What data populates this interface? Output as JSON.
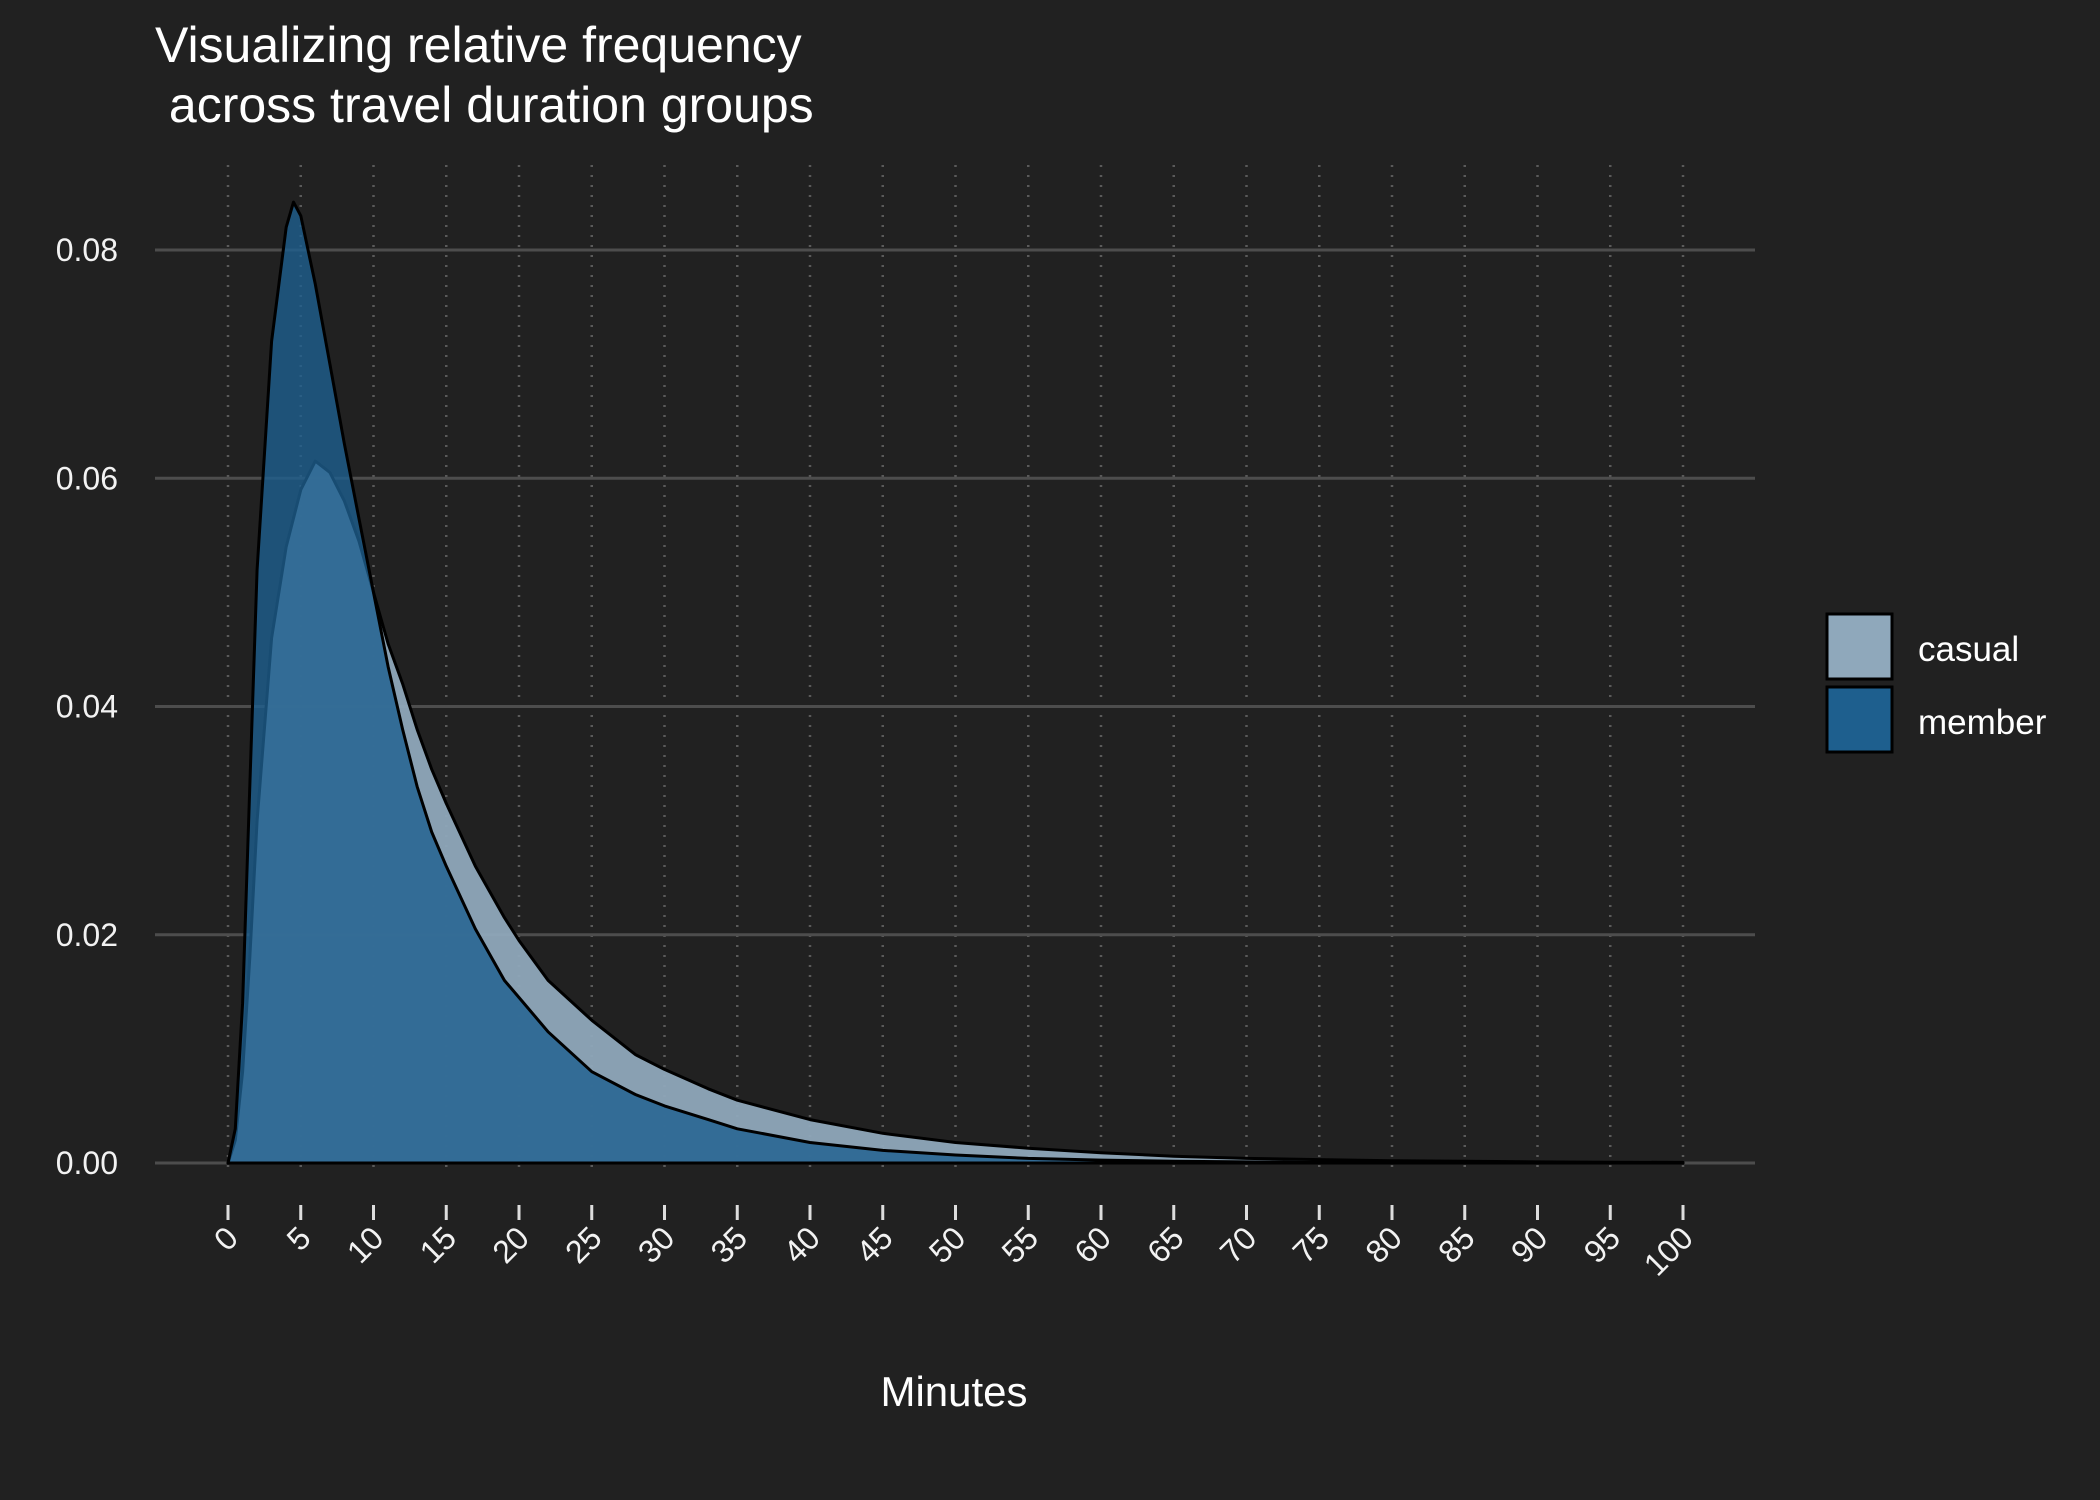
{
  "chart_data": {
    "type": "area",
    "title_lines": [
      "Visualizing relative frequency",
      " across travel duration groups"
    ],
    "xlabel": "Minutes",
    "ylabel": "",
    "xlim": [
      0,
      100
    ],
    "ylim": [
      0,
      0.088
    ],
    "x_ticks": [
      0,
      5,
      10,
      15,
      20,
      25,
      30,
      35,
      40,
      45,
      50,
      55,
      60,
      65,
      70,
      75,
      80,
      85,
      90,
      95,
      100
    ],
    "y_ticks": [
      0,
      0.02,
      0.04,
      0.06,
      0.08
    ],
    "y_tick_labels": [
      "0.00",
      "0.02",
      "0.04",
      "0.06",
      "0.08"
    ],
    "grid": {
      "major_y": true,
      "minor_x_dotted": true
    },
    "legend": {
      "position": "right",
      "title": ""
    },
    "series": [
      {
        "name": "casual",
        "color": "#8fa8bb",
        "x": [
          0,
          0.5,
          1,
          1.5,
          2,
          3,
          4,
          5,
          6,
          7,
          8,
          9,
          10,
          11,
          12,
          13,
          14,
          15,
          17,
          19,
          20,
          22,
          25,
          28,
          30,
          33,
          35,
          40,
          45,
          50,
          55,
          60,
          65,
          70,
          75,
          80,
          85,
          90,
          95,
          100
        ],
        "values": [
          0,
          0.002,
          0.008,
          0.018,
          0.03,
          0.046,
          0.054,
          0.059,
          0.0615,
          0.0605,
          0.058,
          0.0545,
          0.05,
          0.0455,
          0.042,
          0.038,
          0.0345,
          0.0315,
          0.026,
          0.0215,
          0.0195,
          0.016,
          0.0125,
          0.0095,
          0.0082,
          0.0065,
          0.0055,
          0.0038,
          0.0026,
          0.0018,
          0.0013,
          0.0009,
          0.0006,
          0.0004,
          0.0003,
          0.0002,
          0.00015,
          0.0001,
          7e-05,
          5e-05
        ]
      },
      {
        "name": "member",
        "color": "#1e5f8e",
        "x": [
          0,
          0.5,
          1,
          1.5,
          2,
          3,
          4,
          4.5,
          5,
          6,
          7,
          8,
          9,
          10,
          11,
          12,
          13,
          14,
          15,
          17,
          19,
          20,
          22,
          25,
          28,
          30,
          33,
          35,
          40,
          45,
          50,
          55,
          60,
          65,
          70,
          75,
          80,
          85,
          90,
          95,
          100
        ],
        "values": [
          0,
          0.003,
          0.014,
          0.033,
          0.052,
          0.072,
          0.082,
          0.0842,
          0.083,
          0.077,
          0.07,
          0.063,
          0.0565,
          0.05,
          0.0435,
          0.038,
          0.033,
          0.029,
          0.026,
          0.0205,
          0.016,
          0.0145,
          0.0115,
          0.008,
          0.006,
          0.005,
          0.0038,
          0.003,
          0.0018,
          0.0011,
          0.0007,
          0.0004,
          0.00025,
          0.00015,
          0.0001,
          7e-05,
          5e-05,
          3e-05,
          2e-05,
          1e-05,
          1e-05
        ]
      }
    ]
  }
}
